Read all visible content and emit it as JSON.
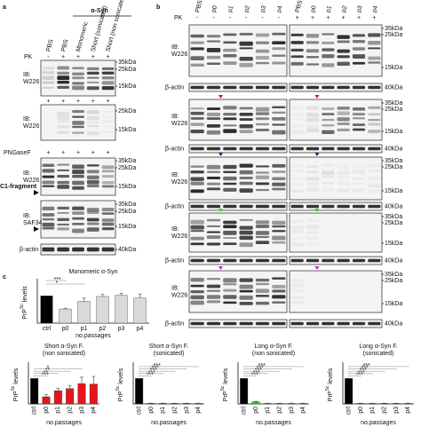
{
  "panel_a": {
    "label": "a",
    "group": "α-Syn",
    "lanes": [
      "PBS",
      "PBS",
      "Monomeric",
      "Short (sonicated)",
      "Short (non sonicated)"
    ],
    "pk": {
      "label": "PK",
      "values": [
        "-",
        "+",
        "+",
        "+",
        "+"
      ]
    },
    "blots": [
      {
        "antibody": [
          "IB:",
          "W226"
        ],
        "markers": [
          "35kDa",
          "25kDa",
          "15kDa"
        ]
      },
      {
        "treatment": [
          "+",
          "+",
          "+",
          "+",
          "+"
        ],
        "antibody": [
          "IB:",
          "W226"
        ],
        "markers": [
          "25kDa",
          "15kDa"
        ]
      },
      {
        "treatment_label": "PNGaseF",
        "treatment": [
          "+",
          "+",
          "+",
          "+",
          "+"
        ],
        "antibody": [
          "IB:",
          "W226"
        ],
        "markers": [
          "35kDa",
          "25kDa",
          "15kDa"
        ],
        "annotation": "C1-fragment"
      },
      {
        "antibody": [
          "IB:",
          "SAF34"
        ],
        "markers": [
          "35kDa",
          "25kDa",
          "15kDa"
        ]
      },
      {
        "antibody": [
          "β-actin"
        ],
        "markers": [
          "40kDa"
        ]
      }
    ]
  },
  "panel_b": {
    "label": "b",
    "lanes": [
      "PBS",
      "p0",
      "p1",
      "p2",
      "p3",
      "p4",
      "PBS",
      "p0",
      "p1",
      "p2",
      "p3",
      "p4"
    ],
    "pk": {
      "label": "PK",
      "values": [
        "-",
        "-",
        "-",
        "-",
        "-",
        "-",
        "+",
        "+",
        "+",
        "+",
        "+",
        "+"
      ]
    },
    "groups": [
      {
        "antibody": [
          "IB:",
          "W226"
        ],
        "markers": [
          "35kDa",
          "25kDa",
          "15kDa"
        ],
        "loading": "β-actin",
        "loading_marker": "40kDa"
      },
      {
        "antibody": [
          "IB:",
          "W226"
        ],
        "markers": [
          "35kDa",
          "25kDa",
          "15kDa"
        ],
        "loading": "β-actin",
        "loading_marker": "40kDa"
      },
      {
        "antibody": [
          "IB:",
          "W226"
        ],
        "markers": [
          "35kDa",
          "25kDa",
          "15kDa"
        ],
        "loading": "β-actin",
        "loading_marker": "40kDa"
      },
      {
        "antibody": [
          "IB:",
          "W226"
        ],
        "markers": [
          "35kDa",
          "25kDa",
          "15kDa"
        ],
        "loading": "β-actin",
        "loading_marker": "40kDa"
      },
      {
        "antibody": [
          "IB:",
          "W226"
        ],
        "markers": [
          "35kDa",
          "25kDa",
          "15kDa"
        ],
        "loading": "β-actin",
        "loading_marker": "40kDa"
      }
    ]
  },
  "panel_c": {
    "label": "c"
  },
  "chart_data": [
    {
      "type": "bar",
      "title": "Monomeric α-Syn",
      "y_label": "PrP",
      "y_label_sup": "Sc",
      "y_label_end": "levels",
      "x_label": "no.passages",
      "categories": [
        "ctrl",
        "p0",
        "p1",
        "p2",
        "p3",
        "p4"
      ],
      "values": [
        100,
        52,
        80,
        98,
        102,
        92
      ],
      "errors": [
        0,
        3,
        12,
        8,
        8,
        15
      ],
      "colors": [
        "#000000",
        "#d9d9d9",
        "#d9d9d9",
        "#d9d9d9",
        "#d9d9d9",
        "#d9d9d9"
      ],
      "ylim": [
        0,
        150
      ],
      "significance": [
        "***",
        "*"
      ]
    },
    {
      "type": "bar",
      "title": "Short α-Syn F.",
      "subtitle": "(non sonicated)",
      "y_label": "PrP",
      "y_label_sup": "Sc",
      "y_label_end": "levels",
      "x_label": "no.passages",
      "categories": [
        "ctrl",
        "p0",
        "p1",
        "p2",
        "p3",
        "p4"
      ],
      "values": [
        100,
        28,
        52,
        60,
        80,
        78
      ],
      "errors": [
        0,
        8,
        10,
        12,
        25,
        30
      ],
      "colors": [
        "#000000",
        "#e8141b",
        "#e8141b",
        "#e8141b",
        "#e8141b",
        "#e8141b"
      ],
      "ylim": [
        0,
        150
      ],
      "significance": [
        "***",
        "**",
        "**",
        "*"
      ]
    },
    {
      "type": "bar",
      "title": "Short α-Syn F.",
      "subtitle": "(sonicated)",
      "y_label": "PrP",
      "y_label_sup": "Sc",
      "y_label_end": "levels",
      "x_label": "no.passages",
      "categories": [
        "ctrl",
        "p0",
        "p1",
        "p2",
        "p3",
        "p4"
      ],
      "values": [
        100,
        2,
        2,
        2,
        2,
        2
      ],
      "errors": [
        0,
        1,
        1,
        1,
        1,
        1
      ],
      "colors": [
        "#000000",
        "#1f3fbf",
        "#1f3fbf",
        "#1f3fbf",
        "#1f3fbf",
        "#1f3fbf"
      ],
      "ylim": [
        0,
        150
      ],
      "significance": [
        "***",
        "***",
        "***",
        "***",
        "***"
      ]
    },
    {
      "type": "bar",
      "title": "Long α-Syn F.",
      "subtitle": "(non sonicated)",
      "y_label": "PrP",
      "y_label_sup": "Sc",
      "y_label_end": "levels",
      "x_label": "no.passages",
      "categories": [
        "ctrl",
        "p0",
        "p1",
        "p2",
        "p3",
        "p4"
      ],
      "values": [
        100,
        8,
        2,
        2,
        2,
        2
      ],
      "errors": [
        0,
        2,
        1,
        1,
        1,
        1
      ],
      "colors": [
        "#000000",
        "#2ecc2e",
        "#2ecc2e",
        "#2ecc2e",
        "#2ecc2e",
        "#2ecc2e"
      ],
      "ylim": [
        0,
        150
      ],
      "significance": [
        "***",
        "***",
        "***",
        "***",
        "***"
      ]
    },
    {
      "type": "bar",
      "title": "Long α-Syn F.",
      "subtitle": "(sonicated)",
      "y_label": "PrP",
      "y_label_sup": "Sc",
      "y_label_end": "levels",
      "x_label": "no.passages",
      "categories": [
        "ctrl",
        "p0",
        "p1",
        "p2",
        "p3",
        "p4"
      ],
      "values": [
        100,
        2,
        2,
        2,
        2,
        2
      ],
      "errors": [
        0,
        1,
        1,
        1,
        1,
        1
      ],
      "colors": [
        "#000000",
        "#b0279f",
        "#b0279f",
        "#b0279f",
        "#b0279f",
        "#b0279f"
      ],
      "ylim": [
        0,
        150
      ],
      "significance": [
        "***",
        "***",
        "***",
        "***",
        "***"
      ]
    }
  ]
}
